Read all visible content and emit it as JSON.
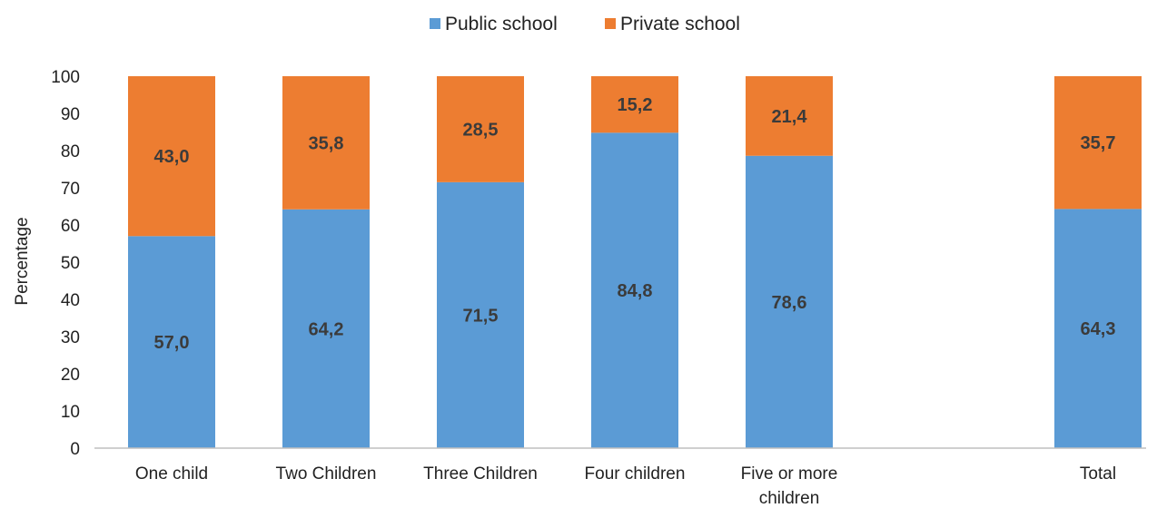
{
  "chart_data": {
    "type": "bar",
    "stacked": true,
    "categories": [
      [
        "One child"
      ],
      [
        "Two Children"
      ],
      [
        "Three Children"
      ],
      [
        "Four children"
      ],
      [
        "Five or more",
        "children"
      ],
      [],
      [
        "Total"
      ]
    ],
    "series": [
      {
        "name": "Public school",
        "color": "#5b9bd5",
        "values": [
          57.0,
          64.2,
          71.5,
          84.8,
          78.6,
          null,
          64.3
        ],
        "labels": [
          "57,0",
          "64,2",
          "71,5",
          "84,8",
          "78,6",
          "",
          "64,3"
        ]
      },
      {
        "name": "Private school",
        "color": "#ed7d31",
        "values": [
          43.0,
          35.8,
          28.5,
          15.2,
          21.4,
          null,
          35.7
        ],
        "labels": [
          "43,0",
          "35,8",
          "28,5",
          "15,2",
          "21,4",
          "",
          "35,7"
        ]
      }
    ],
    "ylabel": "Percentage",
    "ylim": [
      0,
      100
    ],
    "yticks": [
      0,
      10,
      20,
      30,
      40,
      50,
      60,
      70,
      80,
      90,
      100
    ],
    "grid": false,
    "legend_position": "top"
  }
}
